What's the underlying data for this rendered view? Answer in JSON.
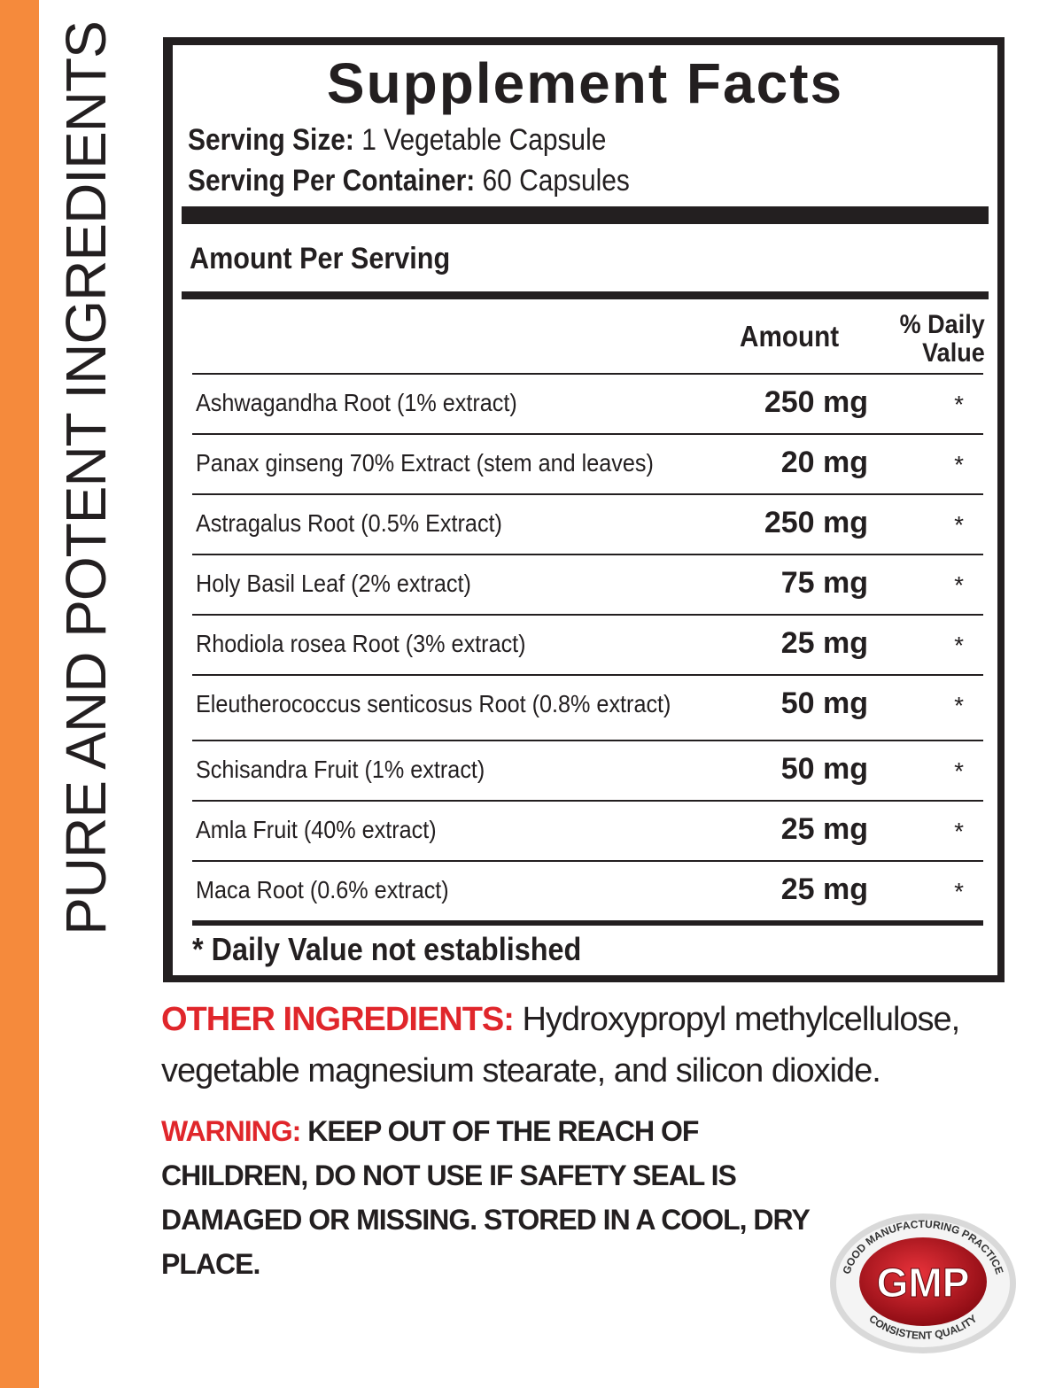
{
  "side_banner": "PURE AND POTENT INGREDIENTS",
  "title": "Supplement Facts",
  "serving_size": {
    "label": "Serving Size:",
    "value": "1 Vegetable Capsule"
  },
  "servings_per_container": {
    "label": "Serving Per Container:",
    "value": "60 Capsules"
  },
  "amount_per_serving": "Amount Per Serving",
  "columns": {
    "amount": "Amount",
    "dv_line1": "% Daily",
    "dv_line2": "Value"
  },
  "ingredients": [
    {
      "name": "Ashwagandha Root (1% extract)",
      "amount": "250 mg",
      "dv": "*"
    },
    {
      "name": "Panax ginseng 70% Extract (stem and leaves)",
      "amount": "20 mg",
      "dv": "*"
    },
    {
      "name": "Astragalus Root (0.5% Extract)",
      "amount": "250 mg",
      "dv": "*"
    },
    {
      "name": "Holy Basil Leaf (2% extract)",
      "amount": "75 mg",
      "dv": "*"
    },
    {
      "name": "Rhodiola rosea Root (3% extract)",
      "amount": "25 mg",
      "dv": "*"
    },
    {
      "name": "Eleutherococcus senticosus Root (0.8% extract)",
      "amount": "50 mg",
      "dv": "*"
    },
    {
      "name": "Schisandra Fruit (1% extract)",
      "amount": "50 mg",
      "dv": "*"
    },
    {
      "name": "Amla Fruit (40% extract)",
      "amount": "25 mg",
      "dv": "*"
    },
    {
      "name": "Maca Root (0.6% extract)",
      "amount": "25 mg",
      "dv": "*"
    }
  ],
  "footnote": "* Daily Value not established",
  "other_ingredients": {
    "label": "OTHER INGREDIENTS:",
    "text": "Hydroxypropyl methylcellulose, vegetable magnesium stearate, and silicon dioxide."
  },
  "warning": {
    "label": "WARNING:",
    "text": "KEEP OUT OF THE REACH OF CHILDREN, DO NOT USE IF SAFETY SEAL IS DAMAGED OR MISSING. STORED IN A COOL, DRY PLACE."
  },
  "gmp_badge": {
    "center": "GMP",
    "top_arc": "GOOD MANUFACTURING PRACTICE",
    "bottom_arc": "CONSISTENT QUALITY"
  },
  "colors": {
    "orange": "#f58a3c",
    "red": "#e0262b",
    "ink": "#231f20"
  }
}
